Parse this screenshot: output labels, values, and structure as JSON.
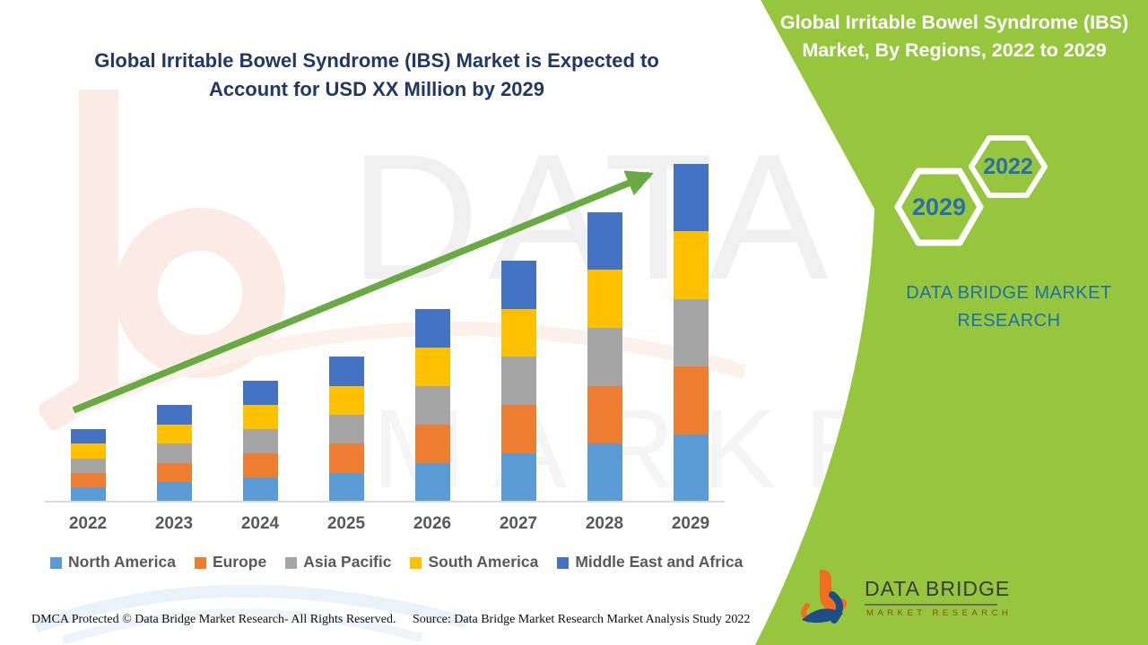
{
  "header": {
    "title_line1": "Global Irritable Bowel Syndrome (IBS) Market is Expected to",
    "title_line2": "Account for USD XX Million by 2029"
  },
  "side_panel": {
    "panel_color": "#95c63e",
    "title_line1": "Global Irritable Bowel Syndrome (IBS)",
    "title_line2": "Market, By Regions, 2022 to 2029",
    "hexagon_years": [
      "2029",
      "2022"
    ],
    "brand_line1": "DATA BRIDGE MARKET",
    "brand_line2": "RESEARCH"
  },
  "chart_data": {
    "type": "bar",
    "stacked": true,
    "title": "Global Irritable Bowel Syndrome (IBS) Market is Expected to Account for USD XX Million by 2029",
    "categories": [
      "2022",
      "2023",
      "2024",
      "2025",
      "2026",
      "2027",
      "2028",
      "2029"
    ],
    "series": [
      {
        "name": "North America",
        "color": "#5b9bd5",
        "values": [
          3,
          4,
          5,
          6,
          8,
          10,
          12,
          14
        ]
      },
      {
        "name": "Europe",
        "color": "#ed7d31",
        "values": [
          3,
          4,
          5,
          6,
          8,
          10,
          12,
          14
        ]
      },
      {
        "name": "Asia Pacific",
        "color": "#a5a5a5",
        "values": [
          3,
          4,
          5,
          6,
          8,
          10,
          12,
          14
        ]
      },
      {
        "name": "South America",
        "color": "#ffc000",
        "values": [
          3,
          4,
          5,
          6,
          8,
          10,
          12,
          14
        ]
      },
      {
        "name": "Middle East and Africa",
        "color": "#4472c4",
        "values": [
          3,
          4,
          5,
          6,
          8,
          10,
          12,
          14
        ]
      }
    ],
    "totals": [
      15,
      20,
      25,
      30,
      40,
      50,
      60,
      70
    ],
    "xlabel": "",
    "ylabel": "",
    "ylim": [
      0,
      70
    ],
    "grid": false,
    "legend_position": "bottom",
    "units_note": "No value axis shown; market sized as USD XX Million. Values are relative estimates read from bar heights; regional segments are approximately equal within each year.",
    "annotations": [
      "green upward trend arrow from 2022 toward 2029"
    ],
    "trend_arrow_color": "#6aaa45"
  },
  "watermarks": {
    "row1": "DATA BRIDGE",
    "row2": "MARKET RESEARCH"
  },
  "logo": {
    "title": "DATA BRIDGE",
    "subtitle": "MARKET RESEARCH"
  },
  "footer": {
    "left": "DMCA Protected © Data Bridge Market Research- All Rights Reserved.",
    "right": "Source: Data Bridge Market Research Market Analysis Study 2022"
  }
}
